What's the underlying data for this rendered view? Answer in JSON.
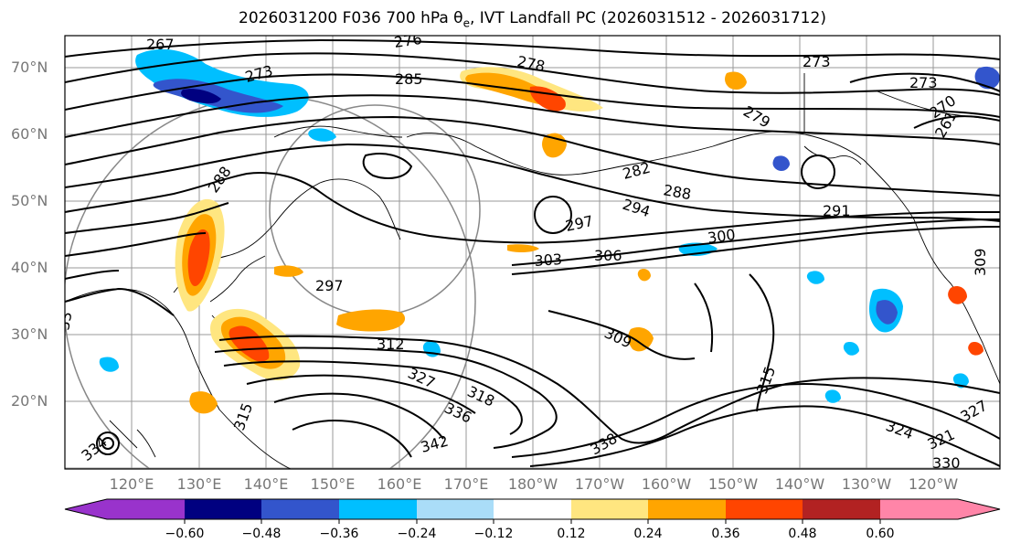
{
  "title": {
    "prefix": "2026031200 F036 700 hPa θ",
    "sub": "e",
    "suffix": ", IVT Landfall PC (2026031512 - 2026031712)"
  },
  "lat_labels": [
    "70°N",
    "60°N",
    "50°N",
    "40°N",
    "30°N",
    "20°N"
  ],
  "lon_labels": [
    "120°E",
    "130°E",
    "140°E",
    "150°E",
    "160°E",
    "170°E",
    "180°W",
    "170°W",
    "160°W",
    "150°W",
    "140°W",
    "130°W",
    "120°W"
  ],
  "contour_labels": [
    "267",
    "273",
    "276",
    "278",
    "285",
    "273",
    "273",
    "279",
    "270",
    "261",
    "288",
    "282",
    "288",
    "294",
    "297",
    "291",
    "300",
    "303",
    "306",
    "309",
    "297",
    "312",
    "309",
    "315",
    "318",
    "327",
    "336",
    "315",
    "342",
    "338",
    "324",
    "321",
    "327",
    "330",
    "334",
    "33"
  ],
  "colorbar": {
    "ticks": [
      "−0.60",
      "−0.48",
      "−0.36",
      "−0.24",
      "−0.12",
      "0.12",
      "0.24",
      "0.36",
      "0.48",
      "0.60"
    ],
    "colors": [
      "#9933cc",
      "#000080",
      "#3355cc",
      "#00bfff",
      "#aaddf8",
      "#ffffff",
      "#ffe680",
      "#ffa500",
      "#ff4500",
      "#b22222",
      "#ff85a8"
    ]
  }
}
